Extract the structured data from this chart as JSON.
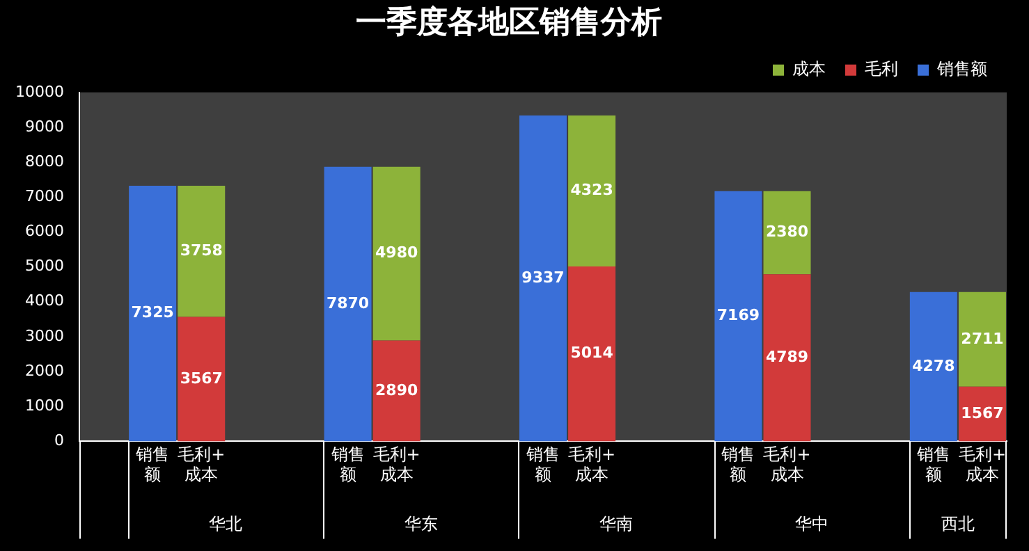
{
  "chart_data": {
    "type": "bar",
    "title": "一季度各地区销售分析",
    "stacked": true,
    "categories": [
      null,
      "销售额",
      "毛利+成本",
      null,
      null,
      "销售额",
      "毛利+成本",
      null,
      null,
      "销售额",
      "毛利+成本",
      null,
      null,
      "销售额",
      "毛利+成本",
      null,
      null,
      "销售额",
      "毛利+成本"
    ],
    "series": [
      {
        "name": "销售额",
        "color": "#3a6fd8",
        "values": [
          null,
          7325,
          null,
          null,
          null,
          7870,
          null,
          null,
          null,
          9337,
          null,
          null,
          null,
          7169,
          null,
          null,
          null,
          4278,
          null
        ]
      },
      {
        "name": "毛利",
        "color": "#d23a3a",
        "values": [
          null,
          null,
          3567,
          null,
          null,
          null,
          2890,
          null,
          null,
          null,
          5014,
          null,
          null,
          null,
          4789,
          null,
          null,
          null,
          1567
        ]
      },
      {
        "name": "成本",
        "color": "#8db33a",
        "values": [
          null,
          null,
          3758,
          null,
          null,
          null,
          4980,
          null,
          null,
          null,
          4323,
          null,
          null,
          null,
          2380,
          null,
          null,
          null,
          2711
        ]
      }
    ],
    "annotations": [
      "华北",
      "华东",
      "华南",
      "华中",
      "西北"
    ],
    "ylim": [
      0,
      10000
    ],
    "yticks": [
      0,
      1000,
      2000,
      3000,
      4000,
      5000,
      6000,
      7000,
      8000,
      9000,
      10000
    ],
    "grid": false,
    "legend": "top right",
    "data_labels": true
  }
}
